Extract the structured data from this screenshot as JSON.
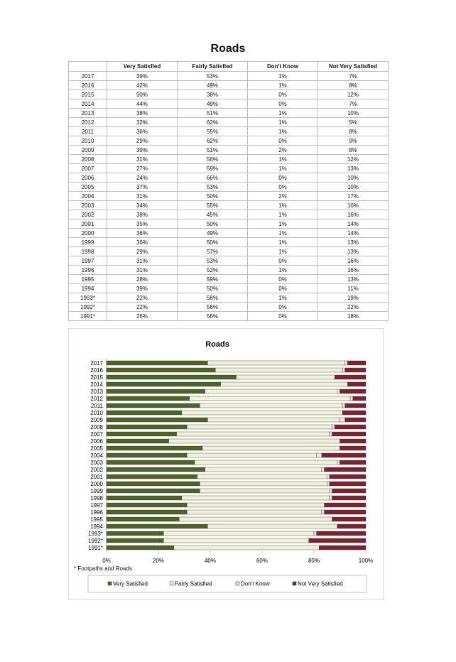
{
  "document": {
    "title": "Roads"
  },
  "table": {
    "headers": [
      "",
      "Very Satisfied",
      "Fairly Satisfied",
      "Don't Know",
      "Not Very Satisfied"
    ],
    "rows": [
      [
        "2017",
        "39%",
        "53%",
        "1%",
        "7%"
      ],
      [
        "2016",
        "42%",
        "49%",
        "1%",
        "8%"
      ],
      [
        "2015",
        "50%",
        "38%",
        "0%",
        "12%"
      ],
      [
        "2014",
        "44%",
        "49%",
        "0%",
        "7%"
      ],
      [
        "2013",
        "38%",
        "51%",
        "1%",
        "10%"
      ],
      [
        "2012",
        "32%",
        "62%",
        "1%",
        "5%"
      ],
      [
        "2011",
        "36%",
        "55%",
        "1%",
        "8%"
      ],
      [
        "2010",
        "29%",
        "62%",
        "0%",
        "9%"
      ],
      [
        "2009",
        "39%",
        "51%",
        "2%",
        "8%"
      ],
      [
        "2008",
        "31%",
        "56%",
        "1%",
        "12%"
      ],
      [
        "2007",
        "27%",
        "59%",
        "1%",
        "13%"
      ],
      [
        "2006",
        "24%",
        "66%",
        "0%",
        "10%"
      ],
      [
        "2005",
        "37%",
        "53%",
        "0%",
        "10%"
      ],
      [
        "2004",
        "31%",
        "50%",
        "2%",
        "17%"
      ],
      [
        "2003",
        "34%",
        "55%",
        "1%",
        "10%"
      ],
      [
        "2002",
        "38%",
        "45%",
        "1%",
        "16%"
      ],
      [
        "2001",
        "35%",
        "50%",
        "1%",
        "14%"
      ],
      [
        "2000",
        "36%",
        "49%",
        "1%",
        "14%"
      ],
      [
        "1999",
        "36%",
        "50%",
        "1%",
        "13%"
      ],
      [
        "1998",
        "29%",
        "57%",
        "1%",
        "13%"
      ],
      [
        "1997",
        "31%",
        "53%",
        "0%",
        "16%"
      ],
      [
        "1996",
        "31%",
        "52%",
        "1%",
        "16%"
      ],
      [
        "1995",
        "28%",
        "59%",
        "0%",
        "13%"
      ],
      [
        "1994",
        "39%",
        "50%",
        "0%",
        "11%"
      ],
      [
        "1993*",
        "22%",
        "58%",
        "1%",
        "19%"
      ],
      [
        "1992*",
        "22%",
        "56%",
        "0%",
        "22%"
      ],
      [
        "1991*",
        "26%",
        "56%",
        "0%",
        "18%"
      ]
    ]
  },
  "chart_data": {
    "type": "bar",
    "orientation": "horizontal",
    "stacking": "percent",
    "title": "Roads",
    "categories": [
      "2017",
      "2016",
      "2015",
      "2014",
      "2013",
      "2012",
      "2011",
      "2010",
      "2009",
      "2008",
      "2007",
      "2006",
      "2005",
      "2004",
      "2003",
      "2002",
      "2001",
      "2000",
      "1999",
      "1998",
      "1997",
      "1996",
      "1995",
      "1994",
      "1993*",
      "1992*",
      "1991*"
    ],
    "series": [
      {
        "name": "Very Satisfied",
        "color": "#4f6228",
        "values": [
          39,
          42,
          50,
          44,
          38,
          32,
          36,
          29,
          39,
          31,
          27,
          24,
          37,
          31,
          34,
          38,
          35,
          36,
          36,
          29,
          31,
          31,
          28,
          39,
          22,
          22,
          26
        ]
      },
      {
        "name": "Fairly Satisfied",
        "color": "#f0f2d8",
        "values": [
          53,
          49,
          38,
          49,
          51,
          62,
          55,
          62,
          51,
          56,
          59,
          66,
          53,
          50,
          55,
          45,
          50,
          49,
          50,
          57,
          53,
          52,
          59,
          50,
          58,
          56,
          56
        ]
      },
      {
        "name": "Don't Know",
        "color": "#e8e8e8",
        "values": [
          1,
          1,
          0,
          0,
          1,
          1,
          1,
          0,
          2,
          1,
          1,
          0,
          0,
          2,
          1,
          1,
          1,
          1,
          1,
          1,
          0,
          1,
          0,
          0,
          1,
          0,
          0
        ]
      },
      {
        "name": "Not Very Satisfied",
        "color": "#7b2431",
        "values": [
          7,
          8,
          12,
          7,
          10,
          5,
          8,
          9,
          8,
          12,
          13,
          10,
          10,
          17,
          10,
          16,
          14,
          14,
          13,
          13,
          16,
          16,
          13,
          11,
          19,
          22,
          18
        ]
      }
    ],
    "xlim": [
      0,
      100
    ],
    "x_ticks": [
      "0%",
      "20%",
      "40%",
      "60%",
      "80%",
      "100%"
    ],
    "legend_position": "bottom",
    "footnote": "* Footpaths and Roads"
  }
}
